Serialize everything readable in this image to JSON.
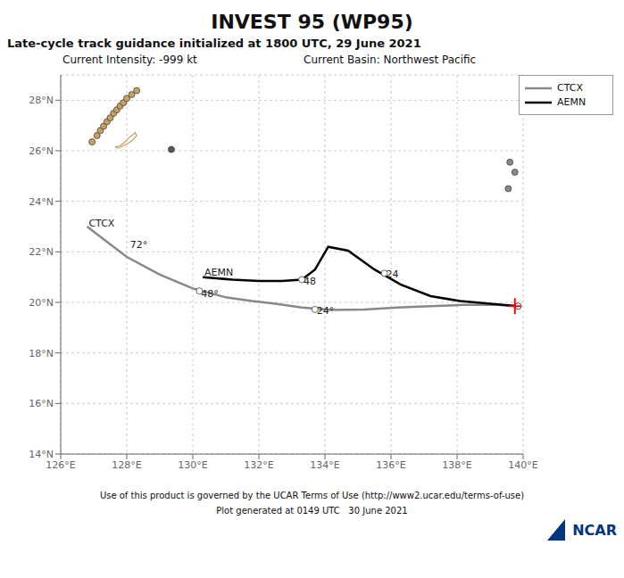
{
  "chart_data": {
    "type": "line",
    "title": "INVEST 95 (WP95)",
    "subtitle": "Late-cycle track guidance initialized at 1800 UTC, 29 June 2021",
    "info": [
      "Current Intensity: -999 kt",
      "Current Basin: Northwest Pacific"
    ],
    "footer": [
      "Use of this product is governed by the UCAR Terms of Use (http://www2.ucar.edu/terms-of-use)",
      "Plot generated at 0149 UTC   30 June 2021"
    ],
    "logo": "NCAR",
    "xlim": [
      126,
      140
    ],
    "ylim": [
      14,
      29
    ],
    "xticks": [
      {
        "value": 126,
        "label": "126°E"
      },
      {
        "value": 128,
        "label": "128°E"
      },
      {
        "value": 130,
        "label": "130°E"
      },
      {
        "value": 132,
        "label": "132°E"
      },
      {
        "value": 134,
        "label": "134°E"
      },
      {
        "value": 136,
        "label": "136°E"
      },
      {
        "value": 138,
        "label": "138°E"
      },
      {
        "value": 140,
        "label": "140°E"
      }
    ],
    "yticks": [
      {
        "value": 14,
        "label": "14°N"
      },
      {
        "value": 16,
        "label": "16°N"
      },
      {
        "value": 18,
        "label": "18°N"
      },
      {
        "value": 20,
        "label": "20°N"
      },
      {
        "value": 22,
        "label": "22°N"
      },
      {
        "value": 24,
        "label": "24°N"
      },
      {
        "value": 26,
        "label": "26°N"
      },
      {
        "value": 28,
        "label": "28°N"
      }
    ],
    "grid": true,
    "legend": "upper right",
    "series": [
      {
        "type": "line",
        "marker": "none",
        "color": "#C8A060",
        "x": [
          127.65,
          127.8,
          127.95,
          128.05,
          128.2,
          128.25,
          128.3,
          128.2,
          128.05,
          127.9,
          127.75,
          127.65
        ],
        "values": [
          26.15,
          26.2,
          26.35,
          26.5,
          26.65,
          26.72,
          26.6,
          26.45,
          26.3,
          26.2,
          26.1,
          26.15
        ]
      },
      {
        "type": "scatter",
        "marker": "o",
        "color": "#C8A060",
        "x": [
          126.95,
          127.1,
          127.2,
          127.3,
          127.4,
          127.5,
          127.6,
          127.7,
          127.8,
          127.9,
          128.0,
          128.15,
          128.3
        ],
        "values": [
          26.35,
          26.6,
          26.8,
          26.97,
          27.15,
          27.3,
          27.48,
          27.62,
          27.77,
          27.9,
          28.07,
          28.22,
          28.38
        ]
      },
      {
        "type": "scatter",
        "marker": "o",
        "color": "#555555",
        "x": [
          129.35
        ],
        "values": [
          26.05
        ]
      },
      {
        "type": "scatter",
        "marker": "o",
        "color": "#888888",
        "x": [
          139.6,
          139.75,
          139.55
        ],
        "values": [
          25.55,
          25.15,
          24.5
        ]
      },
      {
        "name": "CTCX",
        "type": "line",
        "marker": "none",
        "color": "#888888",
        "x": [
          126.8,
          127.3,
          128.0,
          129.0,
          130.0,
          131.0,
          131.8,
          132.5,
          133.3,
          134.2,
          135.2,
          136.2,
          137.2,
          138.2,
          139.2,
          139.85
        ],
        "values": [
          23.0,
          22.5,
          21.8,
          21.1,
          20.55,
          20.2,
          20.05,
          19.95,
          19.8,
          19.7,
          19.72,
          19.8,
          19.85,
          19.9,
          19.9,
          19.85
        ]
      },
      {
        "name": "AEMN",
        "type": "line",
        "marker": "none",
        "color": "#000000",
        "x": [
          130.3,
          131.2,
          132.0,
          132.7,
          133.3,
          133.7,
          134.1,
          134.7,
          135.5,
          136.3,
          137.2,
          138.1,
          139.0,
          139.85
        ],
        "values": [
          21.0,
          20.9,
          20.85,
          20.85,
          20.9,
          21.3,
          22.2,
          22.05,
          21.3,
          20.7,
          20.25,
          20.05,
          19.95,
          19.85
        ]
      },
      {
        "type": "scatter",
        "marker": "o",
        "color": "#ffffff",
        "x": [
          130.2,
          133.7,
          139.85
        ],
        "values": [
          20.45,
          19.72,
          19.85
        ]
      },
      {
        "type": "scatter",
        "marker": "o",
        "color": "#ffffff",
        "x": [
          133.3,
          135.8,
          139.85
        ],
        "values": [
          20.9,
          21.15,
          19.85
        ]
      },
      {
        "type": "scatter",
        "marker": "+",
        "color": "red",
        "x": [
          139.75
        ],
        "values": [
          19.85
        ]
      }
    ],
    "annotations": [
      {
        "text": "CTCX",
        "x": 126.85,
        "y": 23.0
      },
      {
        "text": "72°",
        "x": 128.1,
        "y": 22.15
      },
      {
        "text": "AEMN",
        "x": 130.35,
        "y": 21.05
      },
      {
        "text": "48",
        "x": 133.35,
        "y": 20.7
      },
      {
        "text": "24",
        "x": 135.85,
        "y": 21.0
      },
      {
        "text": "48°",
        "x": 130.25,
        "y": 20.2
      },
      {
        "text": "24°",
        "x": 133.75,
        "y": 19.55
      }
    ]
  }
}
